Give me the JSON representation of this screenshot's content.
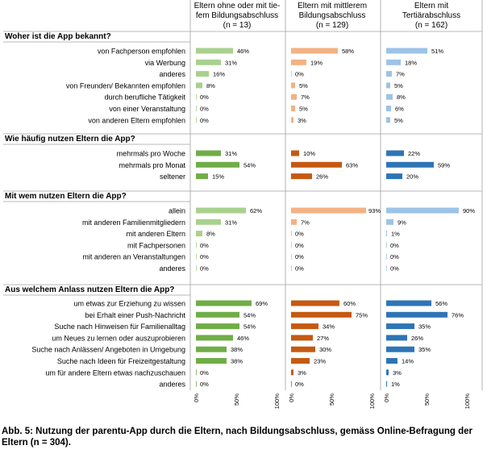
{
  "chart_data": {
    "type": "bar",
    "orientation": "horizontal",
    "groups": [
      {
        "name": "Eltern ohne oder mit tiefem Bildungsabschluss",
        "header_lines": [
          "Eltern ohne oder mit tie-",
          "fem Bildungsabschluss",
          "(n = 13)"
        ],
        "color_light": "#a9d18e",
        "color_dark": "#70ad47"
      },
      {
        "name": "Eltern mit mittlerem Bildungsabschluss",
        "header_lines": [
          "Eltern mit mittlerem",
          "Bildungsabschluss",
          "(n = 129)"
        ],
        "color_light": "#f4b183",
        "color_dark": "#c55a11"
      },
      {
        "name": "Eltern mit Tertiärabschluss",
        "header_lines": [
          "Eltern mit",
          "Tertiärabschluss",
          "(n = 162)"
        ],
        "color_light": "#9dc3e6",
        "color_dark": "#2e75b6"
      }
    ],
    "xlim": [
      0,
      100
    ],
    "x_ticks": [
      "0%",
      "50%",
      "100%"
    ],
    "sections": [
      {
        "title": "Woher ist die App bekannt?",
        "shade": "light",
        "rows": [
          {
            "label": "von Fachperson empfohlen",
            "values": [
              46,
              58,
              51
            ]
          },
          {
            "label": "via Werbung",
            "values": [
              31,
              19,
              18
            ]
          },
          {
            "label": "anderes",
            "values": [
              16,
              0,
              7
            ]
          },
          {
            "label": "von Freunden/ Bekannten empfohlen",
            "values": [
              8,
              5,
              5
            ]
          },
          {
            "label": "durch berufliche Tätigkeit",
            "values": [
              0,
              7,
              8
            ]
          },
          {
            "label": "von einer Veranstaltung",
            "values": [
              0,
              5,
              6
            ]
          },
          {
            "label": "von anderen Eltern empfohlen",
            "values": [
              0,
              3,
              5
            ]
          }
        ]
      },
      {
        "title": "Wie häufig nutzen Eltern die App?",
        "shade": "dark",
        "rows": [
          {
            "label": "mehrmals pro Woche",
            "values": [
              31,
              10,
              22
            ]
          },
          {
            "label": "mehrmals pro Monat",
            "values": [
              54,
              63,
              59
            ]
          },
          {
            "label": "seltener",
            "values": [
              15,
              26,
              20
            ]
          }
        ]
      },
      {
        "title": "Mit wem nutzen Eltern die App?",
        "shade": "light",
        "rows": [
          {
            "label": "allein",
            "values": [
              62,
              93,
              90
            ]
          },
          {
            "label": "mit anderen Familienmitgliedern",
            "values": [
              31,
              7,
              9
            ]
          },
          {
            "label": "mit anderen Eltern",
            "values": [
              8,
              0,
              1
            ]
          },
          {
            "label": "mit Fachpersonen",
            "values": [
              0,
              0,
              0
            ]
          },
          {
            "label": "mit anderen an Veranstaltungen",
            "values": [
              0,
              0,
              0
            ]
          },
          {
            "label": "anderes",
            "values": [
              0,
              0,
              0
            ]
          }
        ]
      },
      {
        "title": "Aus welchem Anlass nutzen Eltern die App?",
        "shade": "dark",
        "rows": [
          {
            "label": "um etwas zur Erziehung zu wissen",
            "values": [
              69,
              60,
              56
            ]
          },
          {
            "label": "bei Erhalt einer Push-Nachricht",
            "values": [
              54,
              75,
              76
            ]
          },
          {
            "label": "Suche nach Hinweisen für Familienalltag",
            "values": [
              54,
              34,
              35
            ]
          },
          {
            "label": "um Neues zu lernen oder auszuprobieren",
            "values": [
              46,
              27,
              26
            ]
          },
          {
            "label": "Suche nach Anlässen/ Angeboten in Umgebung",
            "values": [
              38,
              30,
              35
            ]
          },
          {
            "label": "Suche nach Ideen für Freizeitgestaltung",
            "values": [
              38,
              23,
              14
            ]
          },
          {
            "label": "um für andere Eltern etwas nachzuschauen",
            "values": [
              0,
              3,
              3
            ]
          },
          {
            "label": "anderes",
            "values": [
              0,
              0,
              1
            ]
          }
        ]
      }
    ],
    "value_suffix": "%"
  },
  "caption": "Abb. 5: Nutzung der parentu-App durch die Eltern, nach Bildungsabschluss, gemäss Online-Befragung der Eltern (n = 304)."
}
